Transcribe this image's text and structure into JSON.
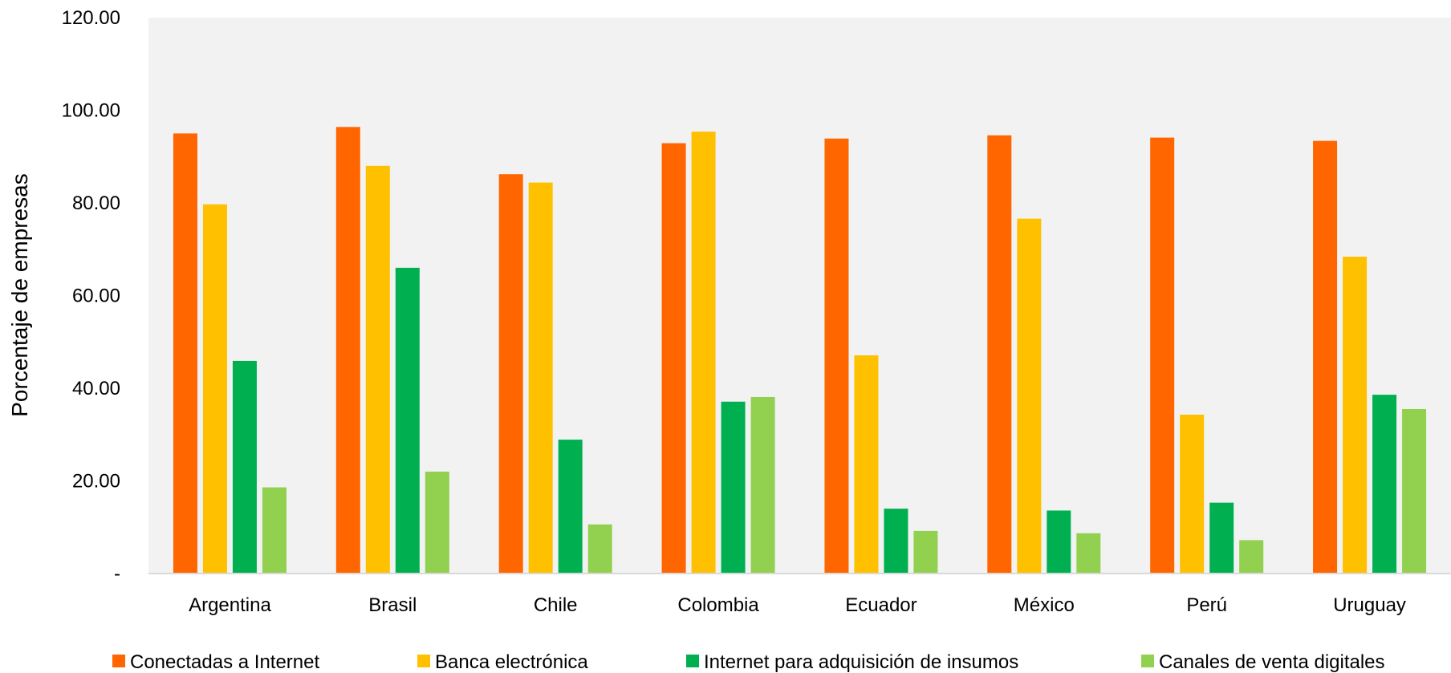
{
  "chart_data": {
    "type": "bar",
    "title": "",
    "xlabel": "",
    "ylabel": "Porcentaje de empresas",
    "ylim": [
      0,
      120
    ],
    "yticks": [
      "-",
      "20.00",
      "40.00",
      "60.00",
      "80.00",
      "100.00",
      "120.00"
    ],
    "ytick_values": [
      0,
      20,
      40,
      60,
      80,
      100,
      120
    ],
    "categories": [
      "Argentina",
      "Brasil",
      "Chile",
      "Colombia",
      "Ecuador",
      "México",
      "Perú",
      "Uruguay"
    ],
    "series": [
      {
        "name": "Conectadas a Internet",
        "color": "#ff6600",
        "values": [
          95.0,
          96.4,
          86.2,
          92.9,
          93.9,
          94.6,
          94.1,
          93.4
        ]
      },
      {
        "name": "Banca electrónica",
        "color": "#ffc000",
        "values": [
          79.7,
          88.0,
          84.4,
          95.4,
          47.1,
          76.6,
          34.3,
          68.4
        ]
      },
      {
        "name": "Internet para adquisición de insumos",
        "color": "#00b050",
        "values": [
          45.9,
          66.0,
          28.9,
          37.1,
          14.0,
          13.6,
          15.3,
          38.6
        ]
      },
      {
        "name": "Canales de venta digitales",
        "color": "#92d050",
        "values": [
          18.6,
          22.0,
          10.6,
          38.1,
          9.2,
          8.7,
          7.2,
          35.5
        ]
      }
    ],
    "grid": false,
    "plot_background": "#f2f2f2",
    "legend_position": "bottom"
  }
}
